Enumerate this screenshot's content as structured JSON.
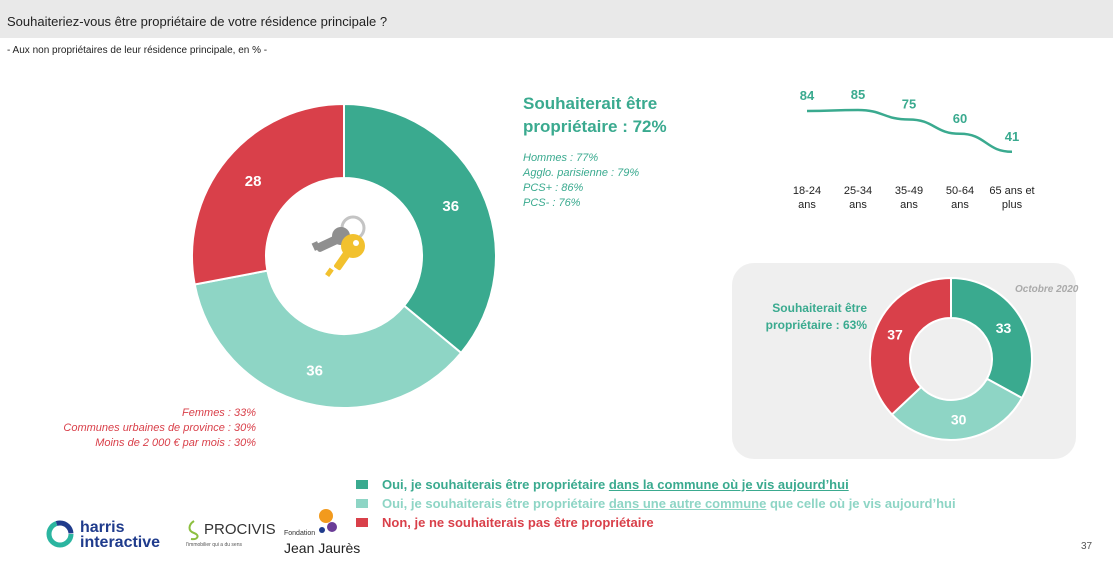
{
  "header": {
    "question": "Souhaiteriez-vous être propriétaire de votre résidence principale ?",
    "subtitle": "- Aux non propriétaires de leur résidence principale, en % -"
  },
  "colors": {
    "dark_green": "#3aaa8f",
    "light_green": "#8ed5c5",
    "red": "#d9404a",
    "panel_bg": "#efefef"
  },
  "chart_data": [
    {
      "type": "pie",
      "variant": "donut",
      "categories": [
        "Oui, dans la commune où je vis aujourd'hui",
        "Oui, dans une autre commune",
        "Non"
      ],
      "values": [
        36,
        36,
        28
      ],
      "colors": [
        "#3aaa8f",
        "#8ed5c5",
        "#d9404a"
      ],
      "center_icon": "keys-icon"
    },
    {
      "type": "line",
      "categories": [
        "18-24 ans",
        "25-34 ans",
        "35-49 ans",
        "50-64 ans",
        "65 ans et plus"
      ],
      "values": [
        84,
        85,
        75,
        60,
        41
      ]
    },
    {
      "type": "pie",
      "variant": "donut",
      "title": "Octobre 2020",
      "values": [
        33,
        30,
        37
      ],
      "colors": [
        "#3aaa8f",
        "#8ed5c5",
        "#d9404a"
      ]
    }
  ],
  "main": {
    "headline": "Souhaiterait être propriétaire : 72%",
    "green_details": [
      "Hommes : 77%",
      "Agglo. parisienne : 79%",
      "PCS+ : 86%",
      "PCS- : 76%"
    ],
    "red_details": [
      "Femmes : 33%",
      "Communes urbaines de province : 30%",
      "Moins de 2 000 € par mois : 30%"
    ]
  },
  "ages": {
    "labels": [
      [
        "18-24",
        "ans"
      ],
      [
        "25-34",
        "ans"
      ],
      [
        "35-49",
        "ans"
      ],
      [
        "50-64",
        "ans"
      ],
      [
        "65 ans et",
        "plus"
      ]
    ]
  },
  "panel": {
    "date": "Octobre 2020",
    "headline": "Souhaiterait être propriétaire : 63%"
  },
  "legend": [
    {
      "pre": "Oui, je souhaiterais être propriétaire ",
      "u": "dans la commune où je vis aujourd’hui",
      "post": "",
      "color": "#3aaa8f"
    },
    {
      "pre": "Oui, je souhaiterais être propriétaire ",
      "u": "dans une autre commune",
      "post": " que celle où je vis aujourd’hui",
      "color": "#8ed5c5"
    },
    {
      "pre": "Non, je ne souhaiterais pas être propriétaire",
      "u": "",
      "post": "",
      "color": "#d9404a"
    }
  ],
  "footer": {
    "harris_line1": "harris",
    "harris_line2": "interactive",
    "procivis": "PROCIVIS",
    "procivis_tagline": "l'immobilier qui a du sens",
    "fondation": "Fondation",
    "jean_jaures": "Jean Jaurès",
    "page_number": "37"
  }
}
